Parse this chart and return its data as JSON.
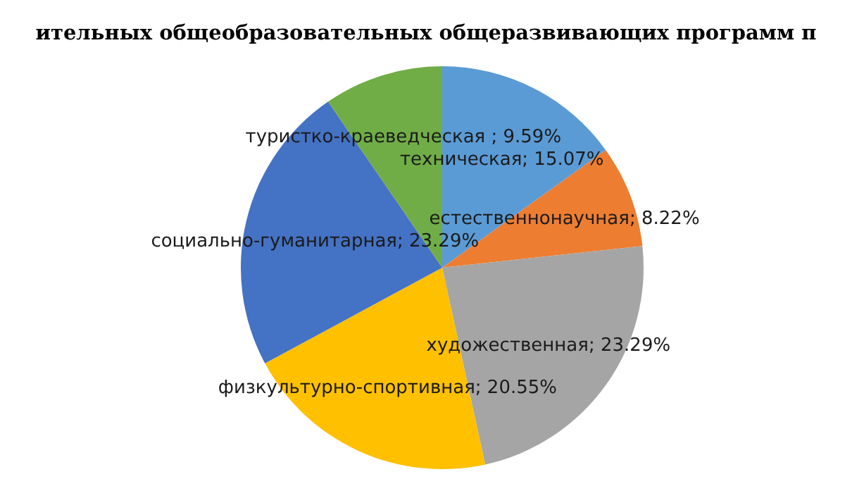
{
  "chart_data": {
    "type": "pie",
    "title": "ительных общеобразовательных общеразвивающих программ п",
    "categories": [
      "техническая",
      "естественнонаучная",
      "художественная",
      "физкультурно-спортивная",
      "социально-гуманитарная",
      "туристко-краеведческая "
    ],
    "values": [
      15.07,
      8.22,
      23.29,
      20.55,
      23.29,
      9.59
    ],
    "value_labels": [
      "; 15.07%",
      "; 8.22%",
      "; 23.29%",
      "; 20.55%",
      "; 23.29%",
      "; 9.59%"
    ],
    "colors": [
      "#5b9bd5",
      "#ed7d31",
      "#a5a5a5",
      "#ffc000",
      "#4472c4",
      "#70ad47"
    ]
  }
}
